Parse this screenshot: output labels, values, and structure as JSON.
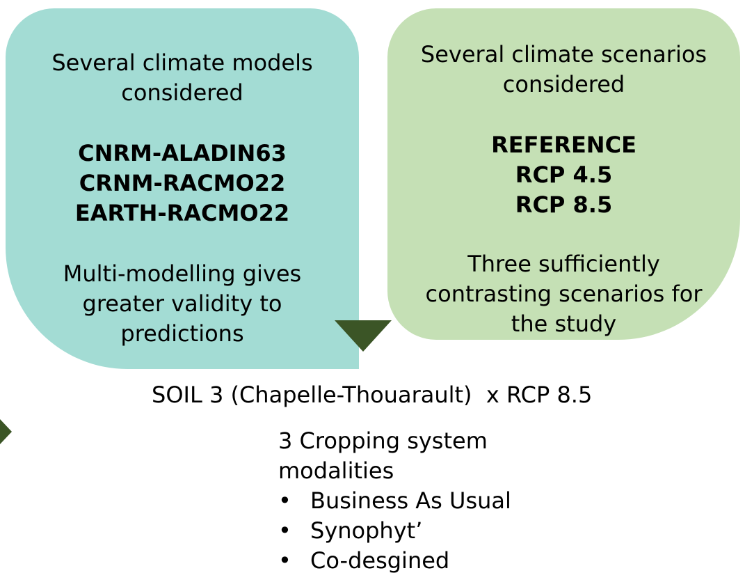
{
  "colors": {
    "models_box": "#a3dcd4",
    "scenarios_box": "#c5e0b5",
    "arrow": "#3b5526",
    "text": "#000000"
  },
  "models_box": {
    "heading": [
      "Several climate models",
      "considered"
    ],
    "models": [
      "CNRM-ALADIN63",
      "CRNM-RACMO22",
      "EARTH-RACMO22"
    ],
    "note": [
      "Multi-modelling gives",
      "greater validity to",
      "predictions"
    ]
  },
  "scenarios_box": {
    "heading": [
      "Several climate scenarios",
      "considered"
    ],
    "scenarios": [
      "REFERENCE",
      "RCP 4.5",
      "RCP 8.5"
    ],
    "note": [
      "Three sufficiently",
      "contrasting scenarios for",
      "the study"
    ]
  },
  "combination": "SOIL 3 (Chapelle-Thouarault)  x RCP 8.5",
  "modalities": {
    "heading": [
      "3 Cropping system",
      "modalities"
    ],
    "bullet_glyph": "•",
    "items": [
      "Business As Usual",
      "Synophyt’",
      "Co-desgined"
    ]
  },
  "icons": {
    "down_arrow": "triangle-down-icon",
    "right_arrow": "triangle-right-icon"
  }
}
